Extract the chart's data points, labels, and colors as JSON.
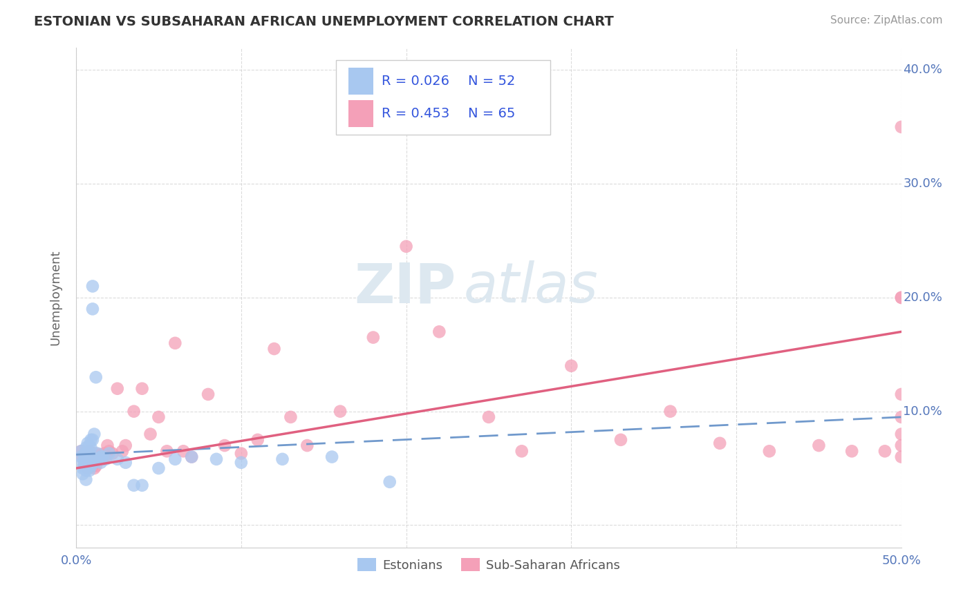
{
  "title": "ESTONIAN VS SUBSAHARAN AFRICAN UNEMPLOYMENT CORRELATION CHART",
  "source": "Source: ZipAtlas.com",
  "ylabel": "Unemployment",
  "xlim": [
    0.0,
    0.5
  ],
  "ylim": [
    -0.02,
    0.42
  ],
  "xticks": [
    0.0,
    0.1,
    0.2,
    0.3,
    0.4,
    0.5
  ],
  "yticks": [
    0.0,
    0.1,
    0.2,
    0.3,
    0.4
  ],
  "xticklabels": [
    "0.0%",
    "",
    "",
    "",
    "",
    "50.0%"
  ],
  "yticklabels_right": [
    "",
    "10.0%",
    "20.0%",
    "30.0%",
    "40.0%"
  ],
  "legend_r1": "R = 0.026",
  "legend_n1": "N = 52",
  "legend_r2": "R = 0.453",
  "legend_n2": "N = 65",
  "estonian_color": "#a8c8f0",
  "subsaharan_color": "#f4a0b8",
  "estonian_trend_color": "#7099cc",
  "subsaharan_trend_color": "#e06080",
  "legend_text_color": "#3355dd",
  "tick_color": "#5577bb",
  "background_color": "#ffffff",
  "grid_color": "#cccccc",
  "watermark_color": "#dde8f0",
  "estonian_x": [
    0.003,
    0.003,
    0.004,
    0.004,
    0.004,
    0.005,
    0.005,
    0.005,
    0.006,
    0.006,
    0.006,
    0.006,
    0.006,
    0.007,
    0.007,
    0.007,
    0.007,
    0.008,
    0.008,
    0.008,
    0.008,
    0.009,
    0.009,
    0.009,
    0.009,
    0.01,
    0.01,
    0.01,
    0.01,
    0.011,
    0.011,
    0.012,
    0.012,
    0.013,
    0.014,
    0.015,
    0.015,
    0.016,
    0.018,
    0.02,
    0.025,
    0.03,
    0.035,
    0.04,
    0.05,
    0.06,
    0.07,
    0.085,
    0.1,
    0.125,
    0.155,
    0.19
  ],
  "estonian_y": [
    0.065,
    0.06,
    0.055,
    0.05,
    0.045,
    0.062,
    0.058,
    0.052,
    0.068,
    0.062,
    0.055,
    0.048,
    0.04,
    0.072,
    0.065,
    0.058,
    0.05,
    0.07,
    0.063,
    0.055,
    0.048,
    0.075,
    0.068,
    0.06,
    0.052,
    0.21,
    0.19,
    0.075,
    0.055,
    0.08,
    0.055,
    0.13,
    0.058,
    0.063,
    0.058,
    0.06,
    0.055,
    0.06,
    0.058,
    0.063,
    0.058,
    0.055,
    0.035,
    0.035,
    0.05,
    0.058,
    0.06,
    0.058,
    0.055,
    0.058,
    0.06,
    0.038
  ],
  "subsaharan_x": [
    0.003,
    0.004,
    0.005,
    0.006,
    0.007,
    0.007,
    0.008,
    0.008,
    0.009,
    0.009,
    0.01,
    0.01,
    0.011,
    0.011,
    0.012,
    0.012,
    0.013,
    0.014,
    0.015,
    0.016,
    0.017,
    0.018,
    0.019,
    0.02,
    0.022,
    0.025,
    0.028,
    0.03,
    0.035,
    0.04,
    0.045,
    0.05,
    0.055,
    0.06,
    0.065,
    0.07,
    0.08,
    0.09,
    0.1,
    0.11,
    0.12,
    0.13,
    0.14,
    0.16,
    0.18,
    0.2,
    0.22,
    0.25,
    0.27,
    0.3,
    0.33,
    0.36,
    0.39,
    0.42,
    0.45,
    0.47,
    0.49,
    0.5,
    0.5,
    0.5,
    0.5,
    0.5,
    0.5,
    0.5,
    0.5
  ],
  "subsaharan_y": [
    0.065,
    0.06,
    0.055,
    0.062,
    0.058,
    0.05,
    0.065,
    0.055,
    0.062,
    0.055,
    0.06,
    0.052,
    0.06,
    0.05,
    0.063,
    0.052,
    0.058,
    0.06,
    0.062,
    0.058,
    0.063,
    0.06,
    0.07,
    0.065,
    0.063,
    0.12,
    0.065,
    0.07,
    0.1,
    0.12,
    0.08,
    0.095,
    0.065,
    0.16,
    0.065,
    0.06,
    0.115,
    0.07,
    0.063,
    0.075,
    0.155,
    0.095,
    0.07,
    0.1,
    0.165,
    0.245,
    0.17,
    0.095,
    0.065,
    0.14,
    0.075,
    0.1,
    0.072,
    0.065,
    0.07,
    0.065,
    0.065,
    0.35,
    0.2,
    0.06,
    0.115,
    0.095,
    0.08,
    0.2,
    0.07
  ],
  "trend_est_x0": 0.0,
  "trend_est_x1": 0.5,
  "trend_est_y0": 0.062,
  "trend_est_y1": 0.095,
  "trend_sub_x0": 0.0,
  "trend_sub_x1": 0.5,
  "trend_sub_y0": 0.05,
  "trend_sub_y1": 0.17
}
